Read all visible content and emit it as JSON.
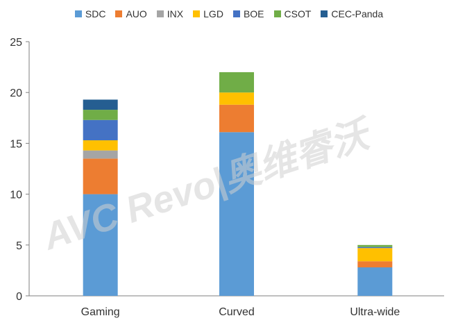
{
  "chart_data": {
    "type": "bar",
    "stacked": true,
    "categories": [
      "Gaming",
      "Curved",
      "Ultra-wide"
    ],
    "series": [
      {
        "name": "SDC",
        "color": "#5b9bd5",
        "values": [
          10.0,
          16.1,
          2.8
        ]
      },
      {
        "name": "AUO",
        "color": "#ed7d31",
        "values": [
          3.5,
          2.7,
          0.6
        ]
      },
      {
        "name": "INX",
        "color": "#a5a5a5",
        "values": [
          0.8,
          0.0,
          0.0
        ]
      },
      {
        "name": "LGD",
        "color": "#ffc000",
        "values": [
          1.0,
          1.2,
          1.3
        ]
      },
      {
        "name": "BOE",
        "color": "#4472c4",
        "values": [
          2.0,
          0.0,
          0.1
        ]
      },
      {
        "name": "CSOT",
        "color": "#70ad47",
        "values": [
          1.0,
          2.0,
          0.2
        ]
      },
      {
        "name": "CEC-Panda",
        "color": "#255e91",
        "values": [
          1.0,
          0.0,
          0.0
        ]
      }
    ],
    "ylim": [
      0,
      25
    ],
    "yticks": [
      0,
      5,
      10,
      15,
      20,
      25
    ],
    "legend": "top",
    "grid": false
  },
  "watermark": {
    "text": "AVC Revo|奥维睿沃"
  }
}
